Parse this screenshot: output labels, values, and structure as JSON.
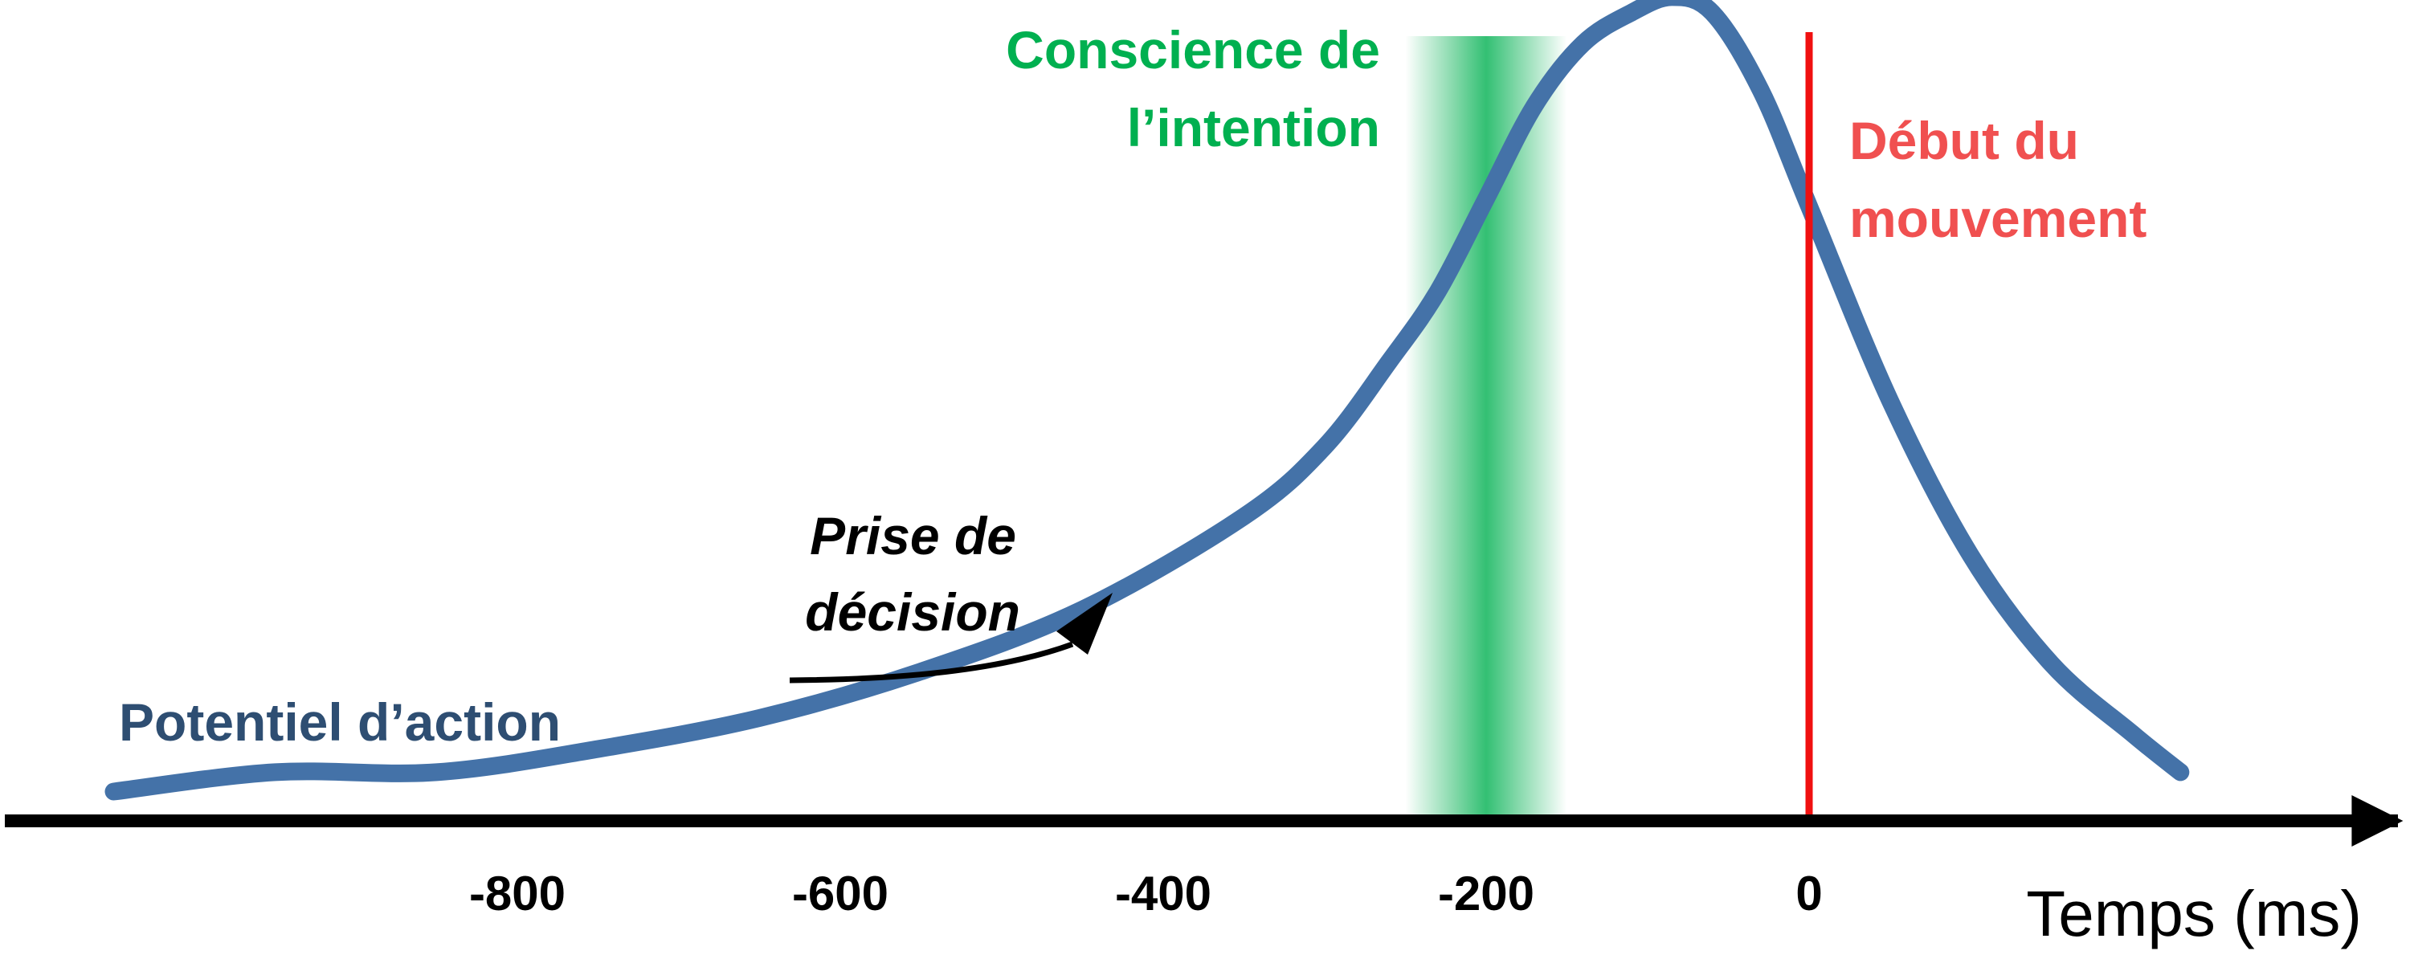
{
  "chart_data": {
    "type": "line",
    "xlabel": "Temps (ms)",
    "x_ticks": [
      {
        "value": -800,
        "label": "-800"
      },
      {
        "value": -600,
        "label": "-600"
      },
      {
        "value": -400,
        "label": "-400"
      },
      {
        "value": -200,
        "label": "-200"
      },
      {
        "value": 0,
        "label": "0"
      }
    ],
    "series": [
      {
        "name": "Potentiel d’action",
        "x": [
          -1050,
          -950,
          -850,
          -750,
          -650,
          -550,
          -450,
          -350,
          -300,
          -260,
          -230,
          -200,
          -170,
          -140,
          -110,
          -85,
          -60,
          -30,
          0,
          50,
          100,
          150,
          200,
          230
        ],
        "y": [
          0.015,
          0.04,
          0.04,
          0.07,
          0.11,
          0.17,
          0.25,
          0.37,
          0.46,
          0.57,
          0.66,
          0.78,
          0.9,
          0.98,
          1.02,
          1.04,
          1.02,
          0.92,
          0.77,
          0.52,
          0.32,
          0.18,
          0.09,
          0.04
        ],
        "color": "#4472a8"
      }
    ],
    "annotations": {
      "intention_band": {
        "center": -200,
        "from": -250,
        "to": -150,
        "label_lines": [
          "Conscience de",
          "l’intention"
        ],
        "color": "#00b050"
      },
      "movement_onset": {
        "x": 0,
        "label_lines": [
          "Début du",
          "mouvement"
        ],
        "color": "#f01010"
      },
      "decision": {
        "label_lines": [
          "Prise de",
          "décision"
        ],
        "arrow_color": "#000000"
      },
      "curve_label": "Potentiel d’action"
    }
  }
}
